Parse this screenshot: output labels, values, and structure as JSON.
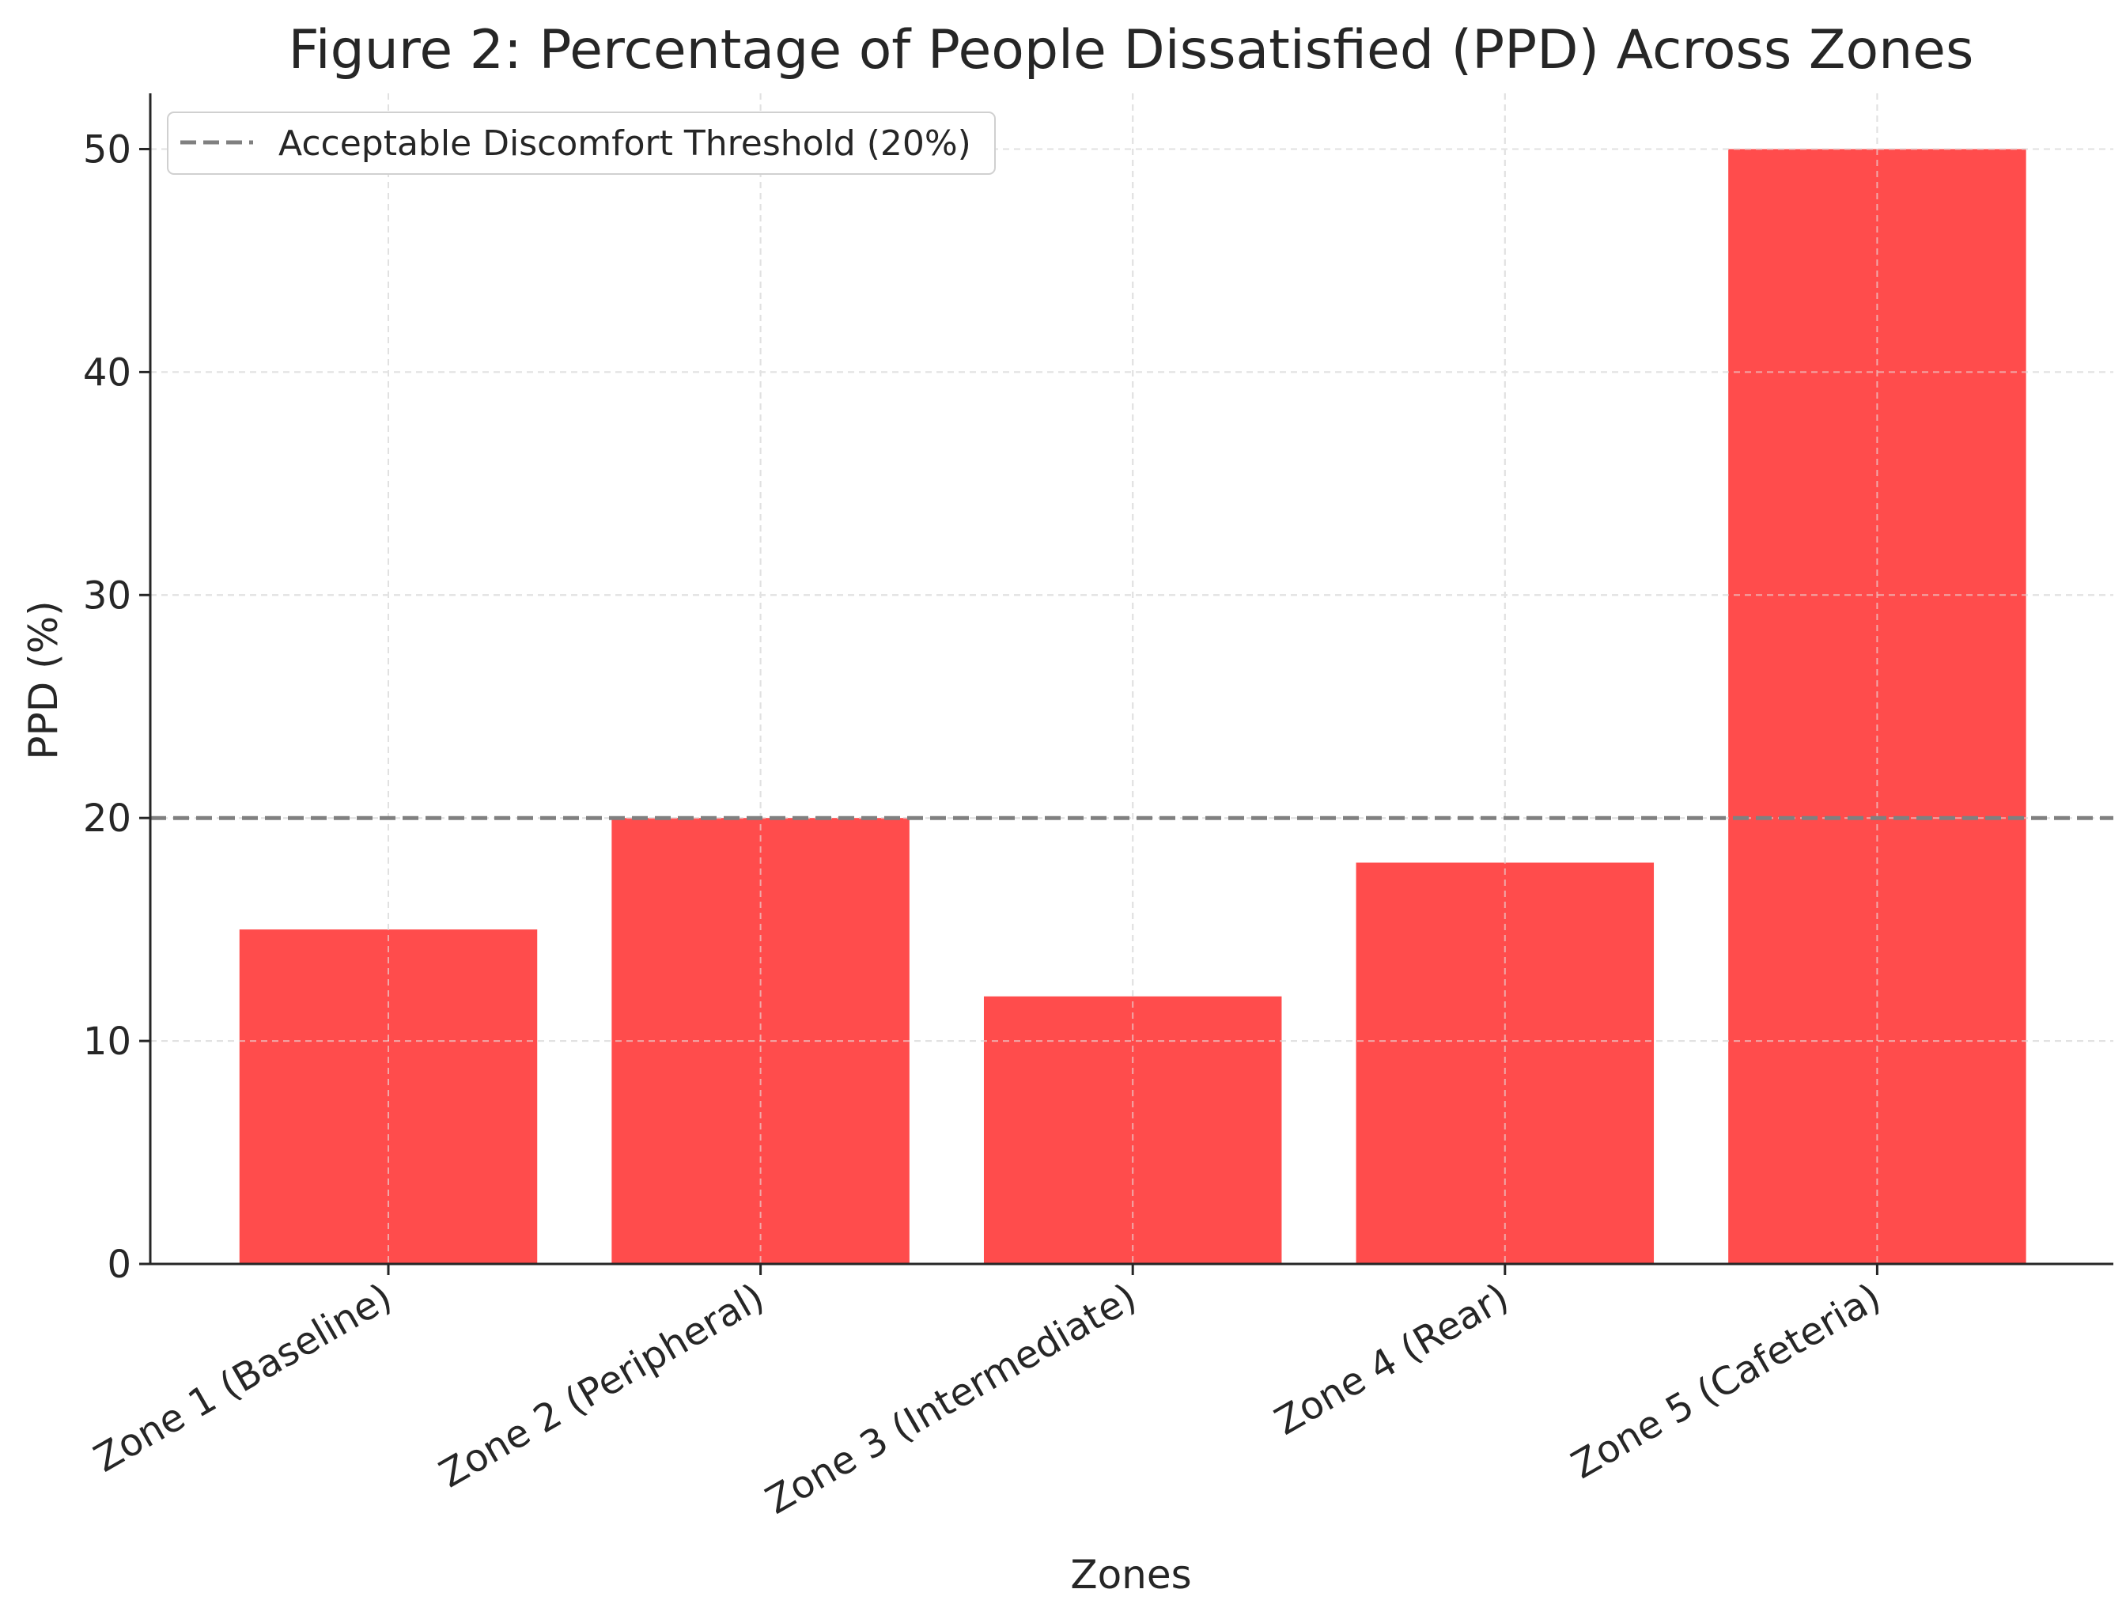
{
  "chart_data": {
    "type": "bar",
    "title": "Figure 2: Percentage of People Dissatisfied (PPD) Across Zones",
    "xlabel": "Zones",
    "ylabel": "PPD (%)",
    "categories": [
      "Zone 1 (Baseline)",
      "Zone 2 (Peripheral)",
      "Zone 3 (Intermediate)",
      "Zone 4 (Rear)",
      "Zone 5 (Cafeteria)"
    ],
    "values": [
      15,
      20,
      12,
      18,
      50
    ],
    "ylim": [
      0,
      52.5
    ],
    "yticks": [
      0,
      10,
      20,
      30,
      40,
      50
    ],
    "grid": true,
    "bar_color": "#ff4c4c",
    "threshold": {
      "value": 20,
      "label": "Acceptable Discomfort Threshold (20%)",
      "color": "#808080",
      "style": "dashed"
    },
    "legend_position": "top-left"
  }
}
